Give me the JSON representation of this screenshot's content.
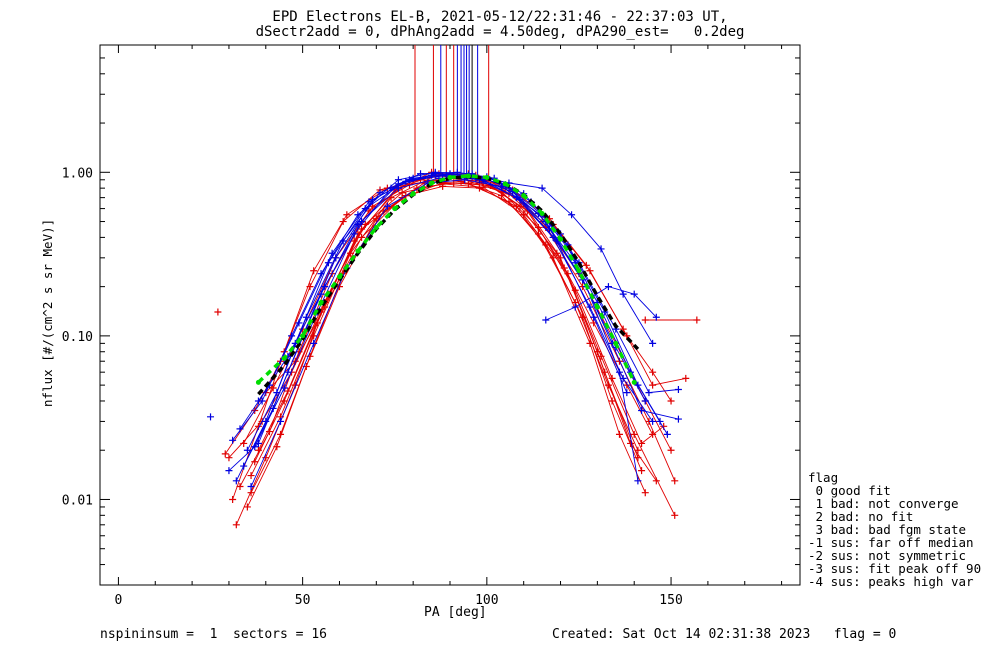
{
  "title": {
    "line1": "EPD Electrons EL-B, 2021-05-12/22:31:46 - 22:37:03 UT,",
    "line2": "dSectr2add = 0, dPhAng2add = 4.50deg, dPA290_est=   0.2deg"
  },
  "footer": {
    "left": "nspininsum =  1  sectors = 16",
    "right": "Created: Sat Oct 14 02:31:38 2023   flag = 0"
  },
  "legend": {
    "title": "flag",
    "items": [
      " 0 good fit",
      " 1 bad: not converge",
      " 2 bad: no fit",
      " 3 bad: bad fgm state",
      "-1 sus: far off median",
      "-2 sus: not symmetric",
      "-3 sus: fit peak off 90",
      "-4 sus: peaks high var"
    ]
  },
  "chart_data": {
    "type": "line",
    "xlabel": "PA [deg]",
    "ylabel": "nflux [#/(cm^2 s sr MeV)]",
    "xlim": [
      -5,
      185
    ],
    "ylim": [
      0.003,
      6
    ],
    "yscale": "log",
    "xticks": [
      0,
      50,
      100,
      150
    ],
    "xtick_labels": [
      "0",
      "50",
      "100",
      "150"
    ],
    "yticks": [
      0.01,
      0.1,
      1.0
    ],
    "ytick_labels": [
      "0.01",
      "0.10",
      "1.00"
    ],
    "colors": {
      "red": "#e00000",
      "blue": "#0000e0",
      "green": "#00dd00",
      "black": "#000000"
    },
    "red_curves": [
      [
        [
          31,
          0.01
        ],
        [
          38,
          0.028
        ],
        [
          45,
          0.08
        ],
        [
          53,
          0.25
        ],
        [
          62,
          0.55
        ],
        [
          73,
          0.8
        ],
        [
          84,
          0.88
        ],
        [
          95,
          0.85
        ],
        [
          106,
          0.66
        ],
        [
          116,
          0.36
        ],
        [
          126,
          0.13
        ],
        [
          134,
          0.04
        ],
        [
          142,
          0.015
        ]
      ],
      [
        [
          32,
          0.007
        ],
        [
          40,
          0.018
        ],
        [
          48,
          0.05
        ],
        [
          56,
          0.16
        ],
        [
          66,
          0.45
        ],
        [
          78,
          0.72
        ],
        [
          88,
          0.82
        ],
        [
          98,
          0.8
        ],
        [
          108,
          0.62
        ],
        [
          118,
          0.3
        ],
        [
          128,
          0.09
        ],
        [
          136,
          0.025
        ],
        [
          143,
          0.011
        ]
      ],
      [
        [
          29,
          0.019
        ],
        [
          37,
          0.035
        ],
        [
          44,
          0.07
        ],
        [
          52,
          0.2
        ],
        [
          61,
          0.5
        ],
        [
          71,
          0.78
        ],
        [
          82,
          0.9
        ],
        [
          93,
          0.88
        ],
        [
          104,
          0.72
        ],
        [
          114,
          0.42
        ],
        [
          124,
          0.16
        ],
        [
          133,
          0.05
        ],
        [
          141,
          0.02
        ]
      ],
      [
        [
          33,
          0.012
        ],
        [
          41,
          0.026
        ],
        [
          49,
          0.08
        ],
        [
          58,
          0.24
        ],
        [
          68,
          0.58
        ],
        [
          80,
          0.9
        ],
        [
          90,
          0.97
        ],
        [
          100,
          0.92
        ],
        [
          110,
          0.64
        ],
        [
          120,
          0.3
        ],
        [
          130,
          0.08
        ],
        [
          139,
          0.022
        ],
        [
          146,
          0.013
        ]
      ],
      [
        [
          35,
          0.009
        ],
        [
          43,
          0.021
        ],
        [
          51,
          0.065
        ],
        [
          60,
          0.2
        ],
        [
          70,
          0.52
        ],
        [
          81,
          0.8
        ],
        [
          91,
          0.86
        ],
        [
          101,
          0.83
        ],
        [
          111,
          0.58
        ],
        [
          121,
          0.26
        ],
        [
          131,
          0.075
        ],
        [
          140,
          0.025
        ],
        [
          151,
          0.008
        ]
      ],
      [
        [
          36,
          0.014
        ],
        [
          44,
          0.032
        ],
        [
          53,
          0.1
        ],
        [
          63,
          0.32
        ],
        [
          74,
          0.7
        ],
        [
          86,
          0.95
        ],
        [
          96,
          0.92
        ],
        [
          106,
          0.74
        ],
        [
          116,
          0.46
        ],
        [
          126,
          0.2
        ],
        [
          136,
          0.07
        ],
        [
          144,
          0.03
        ],
        [
          151,
          0.013
        ]
      ],
      [
        [
          37,
          0.017
        ],
        [
          45,
          0.04
        ],
        [
          54,
          0.12
        ],
        [
          64,
          0.38
        ],
        [
          75,
          0.78
        ],
        [
          85,
          1.0
        ],
        [
          95,
          0.98
        ],
        [
          105,
          0.8
        ],
        [
          115,
          0.5
        ],
        [
          125,
          0.24
        ],
        [
          135,
          0.09
        ],
        [
          143,
          0.04
        ],
        [
          150,
          0.02
        ]
      ],
      [
        [
          34,
          0.022
        ],
        [
          42,
          0.048
        ],
        [
          50,
          0.11
        ],
        [
          59,
          0.3
        ],
        [
          69,
          0.62
        ],
        [
          79,
          0.84
        ],
        [
          89,
          0.92
        ],
        [
          99,
          0.88
        ],
        [
          109,
          0.62
        ],
        [
          119,
          0.32
        ],
        [
          129,
          0.12
        ],
        [
          138,
          0.05
        ],
        [
          145,
          0.025
        ]
      ],
      [
        [
          38,
          0.02
        ],
        [
          46,
          0.046
        ],
        [
          55,
          0.14
        ],
        [
          65,
          0.42
        ],
        [
          76,
          0.8
        ],
        [
          87,
          0.98
        ],
        [
          97,
          0.96
        ],
        [
          107,
          0.78
        ],
        [
          117,
          0.52
        ],
        [
          127,
          0.27
        ],
        [
          137,
          0.11
        ],
        [
          145,
          0.05
        ],
        [
          154,
          0.055
        ]
      ],
      [
        [
          30,
          0.018
        ],
        [
          39,
          0.03
        ],
        [
          47,
          0.06
        ],
        [
          57,
          0.18
        ],
        [
          67,
          0.48
        ],
        [
          77,
          0.75
        ],
        [
          88,
          0.85
        ],
        [
          99,
          0.81
        ],
        [
          110,
          0.55
        ],
        [
          122,
          0.24
        ],
        [
          132,
          0.06
        ],
        [
          141,
          0.018
        ]
      ],
      [
        [
          36,
          0.011
        ],
        [
          44,
          0.025
        ],
        [
          52,
          0.075
        ],
        [
          61,
          0.24
        ],
        [
          72,
          0.58
        ],
        [
          83,
          0.86
        ],
        [
          94,
          0.9
        ],
        [
          104,
          0.76
        ],
        [
          114,
          0.46
        ],
        [
          124,
          0.19
        ],
        [
          134,
          0.055
        ],
        [
          142,
          0.022
        ],
        [
          148,
          0.028
        ]
      ],
      [
        [
          27,
          0.14
        ]
      ],
      [
        [
          143,
          0.125
        ],
        [
          157,
          0.125
        ]
      ],
      [
        [
          40,
          0.045
        ],
        [
          48,
          0.07
        ],
        [
          56,
          0.15
        ],
        [
          66,
          0.4
        ],
        [
          77,
          0.7
        ],
        [
          88,
          0.86
        ],
        [
          98,
          0.86
        ],
        [
          108,
          0.7
        ],
        [
          118,
          0.48
        ],
        [
          128,
          0.25
        ],
        [
          138,
          0.1
        ],
        [
          145,
          0.06
        ],
        [
          150,
          0.04
        ]
      ]
    ],
    "blue_curves": [
      [
        [
          32,
          0.013
        ],
        [
          40,
          0.03
        ],
        [
          48,
          0.09
        ],
        [
          57,
          0.28
        ],
        [
          67,
          0.6
        ],
        [
          78,
          0.88
        ],
        [
          88,
          0.95
        ],
        [
          98,
          0.9
        ],
        [
          108,
          0.7
        ],
        [
          118,
          0.4
        ],
        [
          128,
          0.15
        ],
        [
          137,
          0.055
        ],
        [
          145,
          0.03
        ]
      ],
      [
        [
          31,
          0.023
        ],
        [
          39,
          0.04
        ],
        [
          47,
          0.1
        ],
        [
          55,
          0.24
        ],
        [
          65,
          0.55
        ],
        [
          76,
          0.9
        ],
        [
          86,
          1.0
        ],
        [
          96,
          0.98
        ],
        [
          106,
          0.8
        ],
        [
          116,
          0.5
        ],
        [
          126,
          0.22
        ],
        [
          135,
          0.085
        ],
        [
          143,
          0.04
        ]
      ],
      [
        [
          34,
          0.016
        ],
        [
          42,
          0.036
        ],
        [
          50,
          0.1
        ],
        [
          59,
          0.3
        ],
        [
          69,
          0.68
        ],
        [
          80,
          0.92
        ],
        [
          90,
          0.98
        ],
        [
          100,
          0.94
        ],
        [
          110,
          0.74
        ],
        [
          120,
          0.42
        ],
        [
          130,
          0.16
        ],
        [
          139,
          0.06
        ],
        [
          147,
          0.03
        ]
      ],
      [
        [
          35,
          0.02
        ],
        [
          43,
          0.045
        ],
        [
          51,
          0.13
        ],
        [
          61,
          0.38
        ],
        [
          71,
          0.75
        ],
        [
          82,
          0.98
        ],
        [
          92,
          1.0
        ],
        [
          102,
          0.92
        ],
        [
          112,
          0.66
        ],
        [
          122,
          0.36
        ],
        [
          132,
          0.14
        ],
        [
          141,
          0.05
        ],
        [
          149,
          0.025
        ]
      ],
      [
        [
          33,
          0.027
        ],
        [
          41,
          0.05
        ],
        [
          49,
          0.12
        ],
        [
          58,
          0.32
        ],
        [
          68,
          0.66
        ],
        [
          79,
          0.9
        ],
        [
          89,
          0.96
        ],
        [
          99,
          0.9
        ],
        [
          109,
          0.68
        ],
        [
          119,
          0.38
        ],
        [
          129,
          0.13
        ],
        [
          138,
          0.045
        ]
      ],
      [
        [
          36,
          0.012
        ],
        [
          44,
          0.03
        ],
        [
          53,
          0.09
        ],
        [
          62,
          0.26
        ],
        [
          73,
          0.62
        ],
        [
          84,
          0.86
        ],
        [
          94,
          0.9
        ],
        [
          104,
          0.82
        ],
        [
          114,
          0.56
        ],
        [
          124,
          0.28
        ],
        [
          134,
          0.09
        ],
        [
          142,
          0.035
        ],
        [
          152,
          0.031
        ]
      ],
      [
        [
          37,
          0.021
        ],
        [
          45,
          0.048
        ],
        [
          54,
          0.14
        ],
        [
          64,
          0.42
        ],
        [
          74,
          0.8
        ],
        [
          85,
          0.96
        ],
        [
          95,
          0.96
        ],
        [
          105,
          0.84
        ],
        [
          115,
          0.55
        ],
        [
          125,
          0.28
        ],
        [
          135,
          0.11
        ],
        [
          144,
          0.045
        ],
        [
          152,
          0.047
        ]
      ],
      [
        [
          25,
          0.032
        ]
      ],
      [
        [
          116,
          0.125
        ],
        [
          124,
          0.15
        ],
        [
          133,
          0.2
        ],
        [
          140,
          0.18
        ],
        [
          146,
          0.13
        ]
      ],
      [
        [
          38,
          0.04
        ],
        [
          46,
          0.075
        ],
        [
          56,
          0.2
        ],
        [
          66,
          0.5
        ],
        [
          76,
          0.85
        ],
        [
          86,
          0.98
        ],
        [
          96,
          0.96
        ],
        [
          106,
          0.86
        ],
        [
          115,
          0.8
        ],
        [
          123,
          0.55
        ],
        [
          131,
          0.34
        ],
        [
          137,
          0.18
        ],
        [
          145,
          0.09
        ]
      ],
      [
        [
          30,
          0.015
        ],
        [
          38,
          0.022
        ],
        [
          46,
          0.06
        ],
        [
          55,
          0.18
        ],
        [
          65,
          0.48
        ],
        [
          76,
          0.8
        ],
        [
          87,
          0.92
        ],
        [
          97,
          0.92
        ],
        [
          107,
          0.76
        ],
        [
          117,
          0.45
        ],
        [
          127,
          0.2
        ],
        [
          136,
          0.06
        ],
        [
          141,
          0.013
        ]
      ]
    ],
    "green_curve": [
      [
        38,
        0.052
      ],
      [
        45,
        0.073
      ],
      [
        50,
        0.1
      ],
      [
        55,
        0.16
      ],
      [
        60,
        0.23
      ],
      [
        65,
        0.33
      ],
      [
        70,
        0.46
      ],
      [
        75,
        0.6
      ],
      [
        80,
        0.74
      ],
      [
        85,
        0.86
      ],
      [
        90,
        0.93
      ],
      [
        95,
        0.95
      ],
      [
        100,
        0.93
      ],
      [
        105,
        0.85
      ],
      [
        110,
        0.72
      ],
      [
        115,
        0.56
      ],
      [
        120,
        0.39
      ],
      [
        125,
        0.25
      ],
      [
        130,
        0.15
      ],
      [
        135,
        0.09
      ],
      [
        140,
        0.052
      ]
    ],
    "black_curve": [
      [
        38,
        0.044
      ],
      [
        45,
        0.066
      ],
      [
        50,
        0.095
      ],
      [
        55,
        0.15
      ],
      [
        60,
        0.22
      ],
      [
        65,
        0.32
      ],
      [
        70,
        0.45
      ],
      [
        75,
        0.59
      ],
      [
        80,
        0.73
      ],
      [
        85,
        0.85
      ],
      [
        90,
        0.92
      ],
      [
        95,
        0.94
      ],
      [
        100,
        0.92
      ],
      [
        105,
        0.85
      ],
      [
        110,
        0.73
      ],
      [
        115,
        0.58
      ],
      [
        120,
        0.42
      ],
      [
        125,
        0.28
      ],
      [
        130,
        0.175
      ],
      [
        135,
        0.115
      ],
      [
        141,
        0.083
      ]
    ],
    "vertical_lines": [
      {
        "x": 80.5,
        "color": "red"
      },
      {
        "x": 85.5,
        "color": "red"
      },
      {
        "x": 87.5,
        "color": "blue"
      },
      {
        "x": 89.0,
        "color": "red"
      },
      {
        "x": 91.0,
        "color": "red"
      },
      {
        "x": 92.0,
        "color": "blue"
      },
      {
        "x": 93.0,
        "color": "blue"
      },
      {
        "x": 93.8,
        "color": "blue"
      },
      {
        "x": 94.5,
        "color": "blue"
      },
      {
        "x": 95.2,
        "color": "blue"
      },
      {
        "x": 96.0,
        "color": "black"
      },
      {
        "x": 97.5,
        "color": "blue"
      },
      {
        "x": 100.5,
        "color": "red"
      }
    ]
  }
}
